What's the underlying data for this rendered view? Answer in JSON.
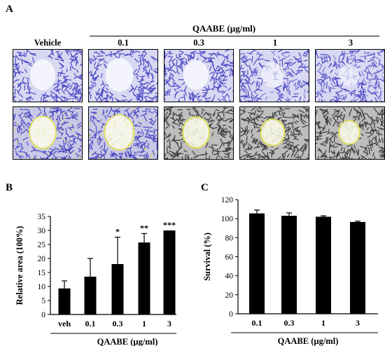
{
  "figure": {
    "panel_labels": [
      "A",
      "B",
      "C"
    ],
    "treatment_title": "QAABE (µg/ml)",
    "column_headers": [
      "Vehicle",
      "0.1",
      "0.3",
      "1",
      "3"
    ],
    "stain_color": "#4a48c4",
    "overlay_color": "#e6e64a",
    "gray_color": "#8a8a8a"
  },
  "chart_data": [
    {
      "type": "bar",
      "panel": "B",
      "categories": [
        "veh",
        "0.1",
        "0.3",
        "1",
        "3"
      ],
      "values": [
        9.3,
        13.5,
        18.0,
        25.7,
        30.0
      ],
      "errors": [
        2.7,
        6.5,
        9.6,
        3.2,
        0
      ],
      "significance": [
        "",
        "",
        "*",
        "**",
        "***"
      ],
      "ylabel": "Relative area (100%)",
      "xlabel": "QAABE (µg/ml)",
      "ylim": [
        0,
        35
      ],
      "yticks": [
        0,
        5,
        10,
        15,
        20,
        25,
        30,
        35
      ],
      "bar_color": "#000000"
    },
    {
      "type": "bar",
      "panel": "C",
      "categories": [
        "0.1",
        "0.3",
        "1",
        "3"
      ],
      "values": [
        105.5,
        103.0,
        102.0,
        96.5
      ],
      "errors": [
        3.5,
        3.0,
        1.0,
        0.8
      ],
      "ylabel": "Survival (%)",
      "xlabel": "QAABE (µg/ml)",
      "ylim": [
        0,
        120
      ],
      "yticks": [
        0,
        20,
        40,
        60,
        80,
        100,
        120
      ],
      "bar_color": "#000000"
    }
  ]
}
